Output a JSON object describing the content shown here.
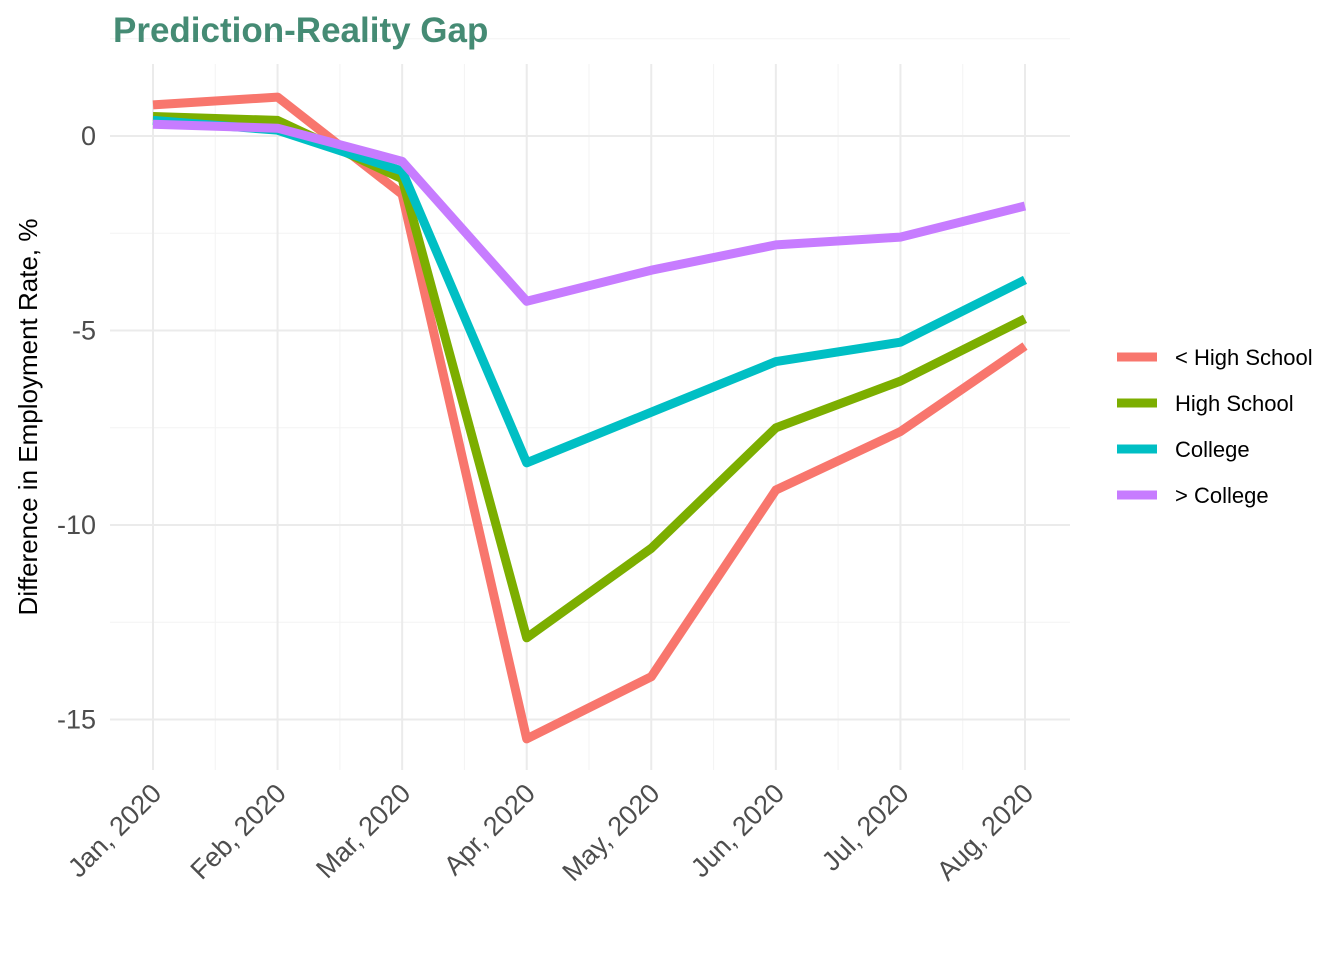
{
  "chart_data": {
    "type": "line",
    "title": "Prediction-Reality Gap",
    "title_color": "#458b74",
    "xlabel": "",
    "ylabel": "Difference in Employment Rate, %",
    "categories": [
      "Jan, 2020",
      "Feb, 2020",
      "Mar, 2020",
      "Apr, 2020",
      "May, 2020",
      "Jun, 2020",
      "Jul, 2020",
      "Aug, 2020"
    ],
    "x_dates": [
      "2020-01-01",
      "2020-02-01",
      "2020-03-01",
      "2020-04-01",
      "2020-05-01",
      "2020-06-01",
      "2020-07-01",
      "2020-08-01"
    ],
    "ylim": [
      -16.3,
      1.8
    ],
    "yticks": [
      0,
      -5,
      -10,
      -15
    ],
    "ytick_labels": [
      "0",
      "-5",
      "-10",
      "-15"
    ],
    "grid": true,
    "legend_position": "right",
    "series": [
      {
        "name": "< High School",
        "color": "#f8766d",
        "values": [
          0.8,
          1.0,
          -1.5,
          -15.5,
          -13.9,
          -9.1,
          -7.6,
          -5.4
        ]
      },
      {
        "name": "High School",
        "color": "#7cae00",
        "values": [
          0.5,
          0.4,
          -1.1,
          -12.9,
          -10.6,
          -7.5,
          -6.3,
          -4.7
        ]
      },
      {
        "name": "College",
        "color": "#00bfc4",
        "values": [
          0.4,
          0.15,
          -0.9,
          -8.4,
          -7.1,
          -5.8,
          -5.3,
          -3.7
        ]
      },
      {
        "name": "> College",
        "color": "#c77cff",
        "values": [
          0.3,
          0.2,
          -0.65,
          -4.25,
          -3.45,
          -2.8,
          -2.6,
          -1.8
        ]
      }
    ]
  }
}
